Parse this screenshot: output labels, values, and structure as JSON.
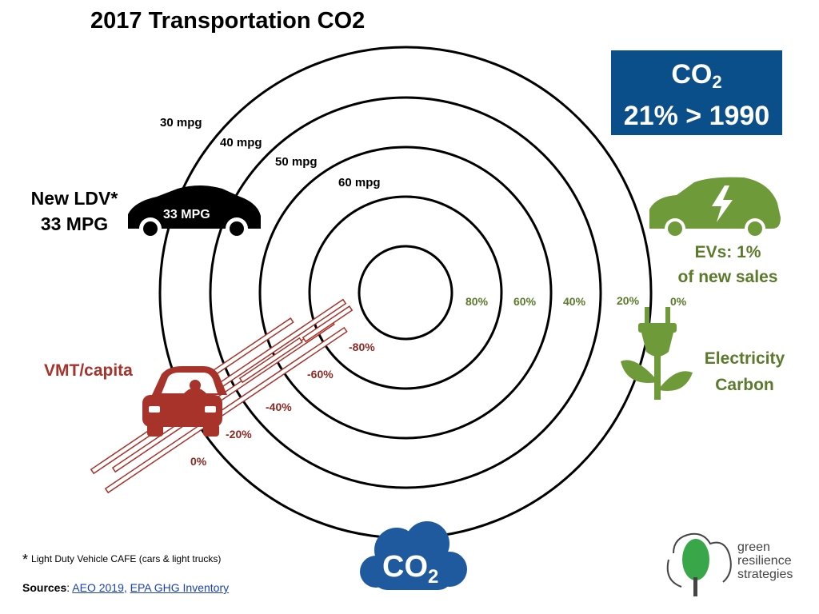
{
  "title": "2017 Transportation CO2",
  "co2_box": {
    "line1_main": "CO",
    "line1_sub": "2",
    "line2": "21% > 1990"
  },
  "mpg_rings": [
    "30 mpg",
    "40 mpg",
    "50 mpg",
    "60 mpg"
  ],
  "ldv": {
    "line1": "New LDV*",
    "line2": "33 MPG",
    "car_label": "33 MPG"
  },
  "ev": {
    "line1": "EVs:  1%",
    "line2": "of new sales"
  },
  "electricity": {
    "line1": "Electricity",
    "line2": "Carbon"
  },
  "electricity_scale": [
    "80%",
    "60%",
    "40%",
    "20%",
    "0%"
  ],
  "vmt": {
    "label": "VMT/capita",
    "scale": [
      "-80%",
      "-60%",
      "-40%",
      "-20%",
      "0%"
    ]
  },
  "footnote": {
    "star": "*",
    "text": "Light Duty Vehicle  CAFE  (cars & light trucks)"
  },
  "sources": {
    "label": "Sources",
    "separator": ": ",
    "link1": "AEO 2019",
    "link_sep": ",",
    "link2": "EPA GHG Inventory"
  },
  "cloud_text": {
    "main": "CO",
    "sub": "2"
  },
  "brand": {
    "line1": "green",
    "line2": "resilience",
    "line3": "strategies"
  },
  "colors": {
    "box_blue": "#0b4f8a",
    "green": "#5b7a2b",
    "ev_green": "#6f9a3a",
    "red": "#a7332b",
    "cloud_blue": "#1f5a9e",
    "leaf_green": "#3aa64a"
  }
}
